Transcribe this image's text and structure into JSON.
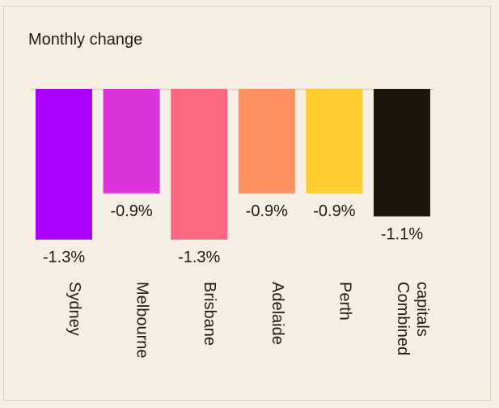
{
  "chart_data": {
    "type": "bar",
    "title": "Monthly change",
    "categories": [
      [
        "Sydney"
      ],
      [
        "Melbourne"
      ],
      [
        "Brisbane"
      ],
      [
        "Adelaide"
      ],
      [
        "Perth"
      ],
      [
        "Combined",
        "capitals"
      ]
    ],
    "values": [
      -1.3,
      -0.9,
      -1.3,
      -0.9,
      -0.9,
      -1.1
    ],
    "data_labels": [
      "-1.3%",
      "-0.9%",
      "-1.3%",
      "-0.9%",
      "-0.9%",
      "-1.1%"
    ],
    "colors": [
      "#aa00ff",
      "#dd33dd",
      "#ff6680",
      "#ff9060",
      "#ffcc30",
      "#1e160a"
    ],
    "ylim": [
      -1.3,
      0
    ],
    "xlabel": "",
    "ylabel": "",
    "grid": false,
    "legend": "none"
  }
}
